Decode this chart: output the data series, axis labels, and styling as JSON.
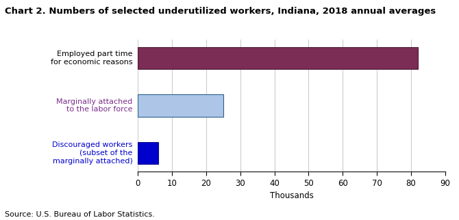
{
  "title": "Chart 2. Numbers of selected underutilized workers, Indiana, 2018 annual averages",
  "categories": [
    "Discouraged workers\n(subset of the\nmarginally attached)",
    "Marginally attached\nto the labor force",
    "Employed part time\nfor economic reasons"
  ],
  "label_colors": [
    "#0000cc",
    "#7b2d8b",
    "#000000"
  ],
  "values": [
    6,
    25,
    82
  ],
  "bar_colors": [
    "#0000cc",
    "#adc6e8",
    "#7b2d55"
  ],
  "bar_edgecolors": [
    "#00008b",
    "#2c5f8a",
    "#4a1a35"
  ],
  "xlabel": "Thousands",
  "xlim": [
    0,
    90
  ],
  "xticks": [
    0,
    10,
    20,
    30,
    40,
    50,
    60,
    70,
    80,
    90
  ],
  "source_text": "Source: U.S. Bureau of Labor Statistics.",
  "title_fontsize": 9.5,
  "label_fontsize": 8,
  "tick_fontsize": 8.5,
  "source_fontsize": 8,
  "background_color": "#ffffff",
  "grid_color": "#cccccc"
}
